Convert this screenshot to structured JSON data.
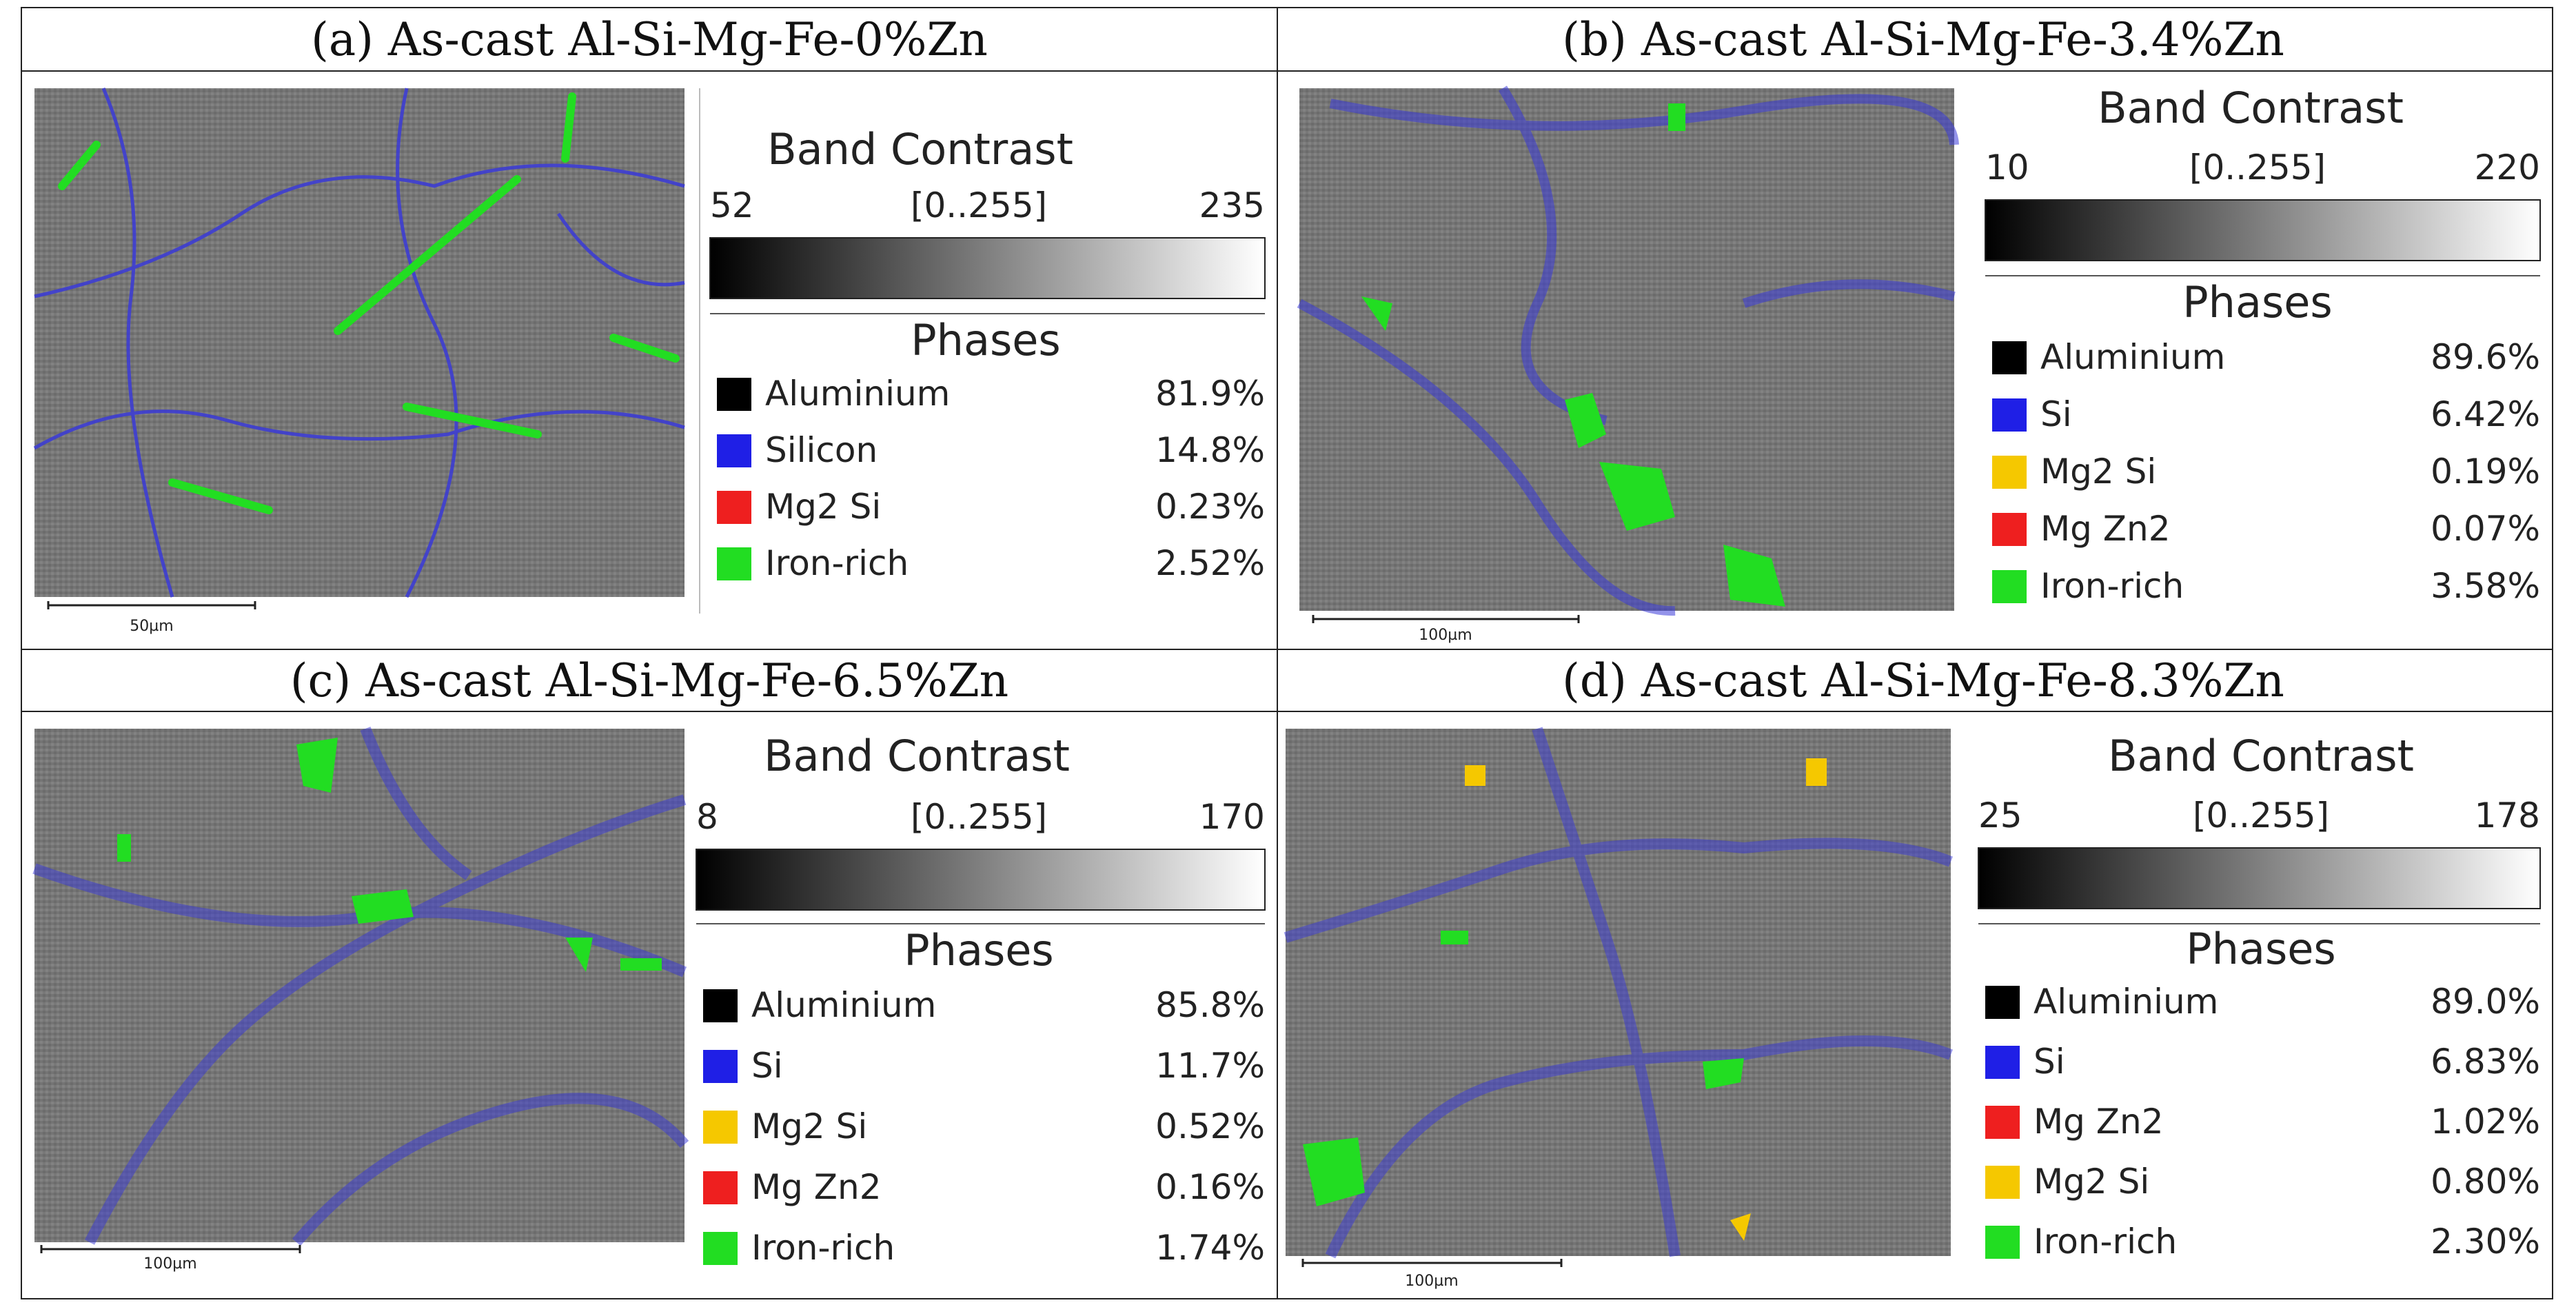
{
  "panels": [
    {
      "title": "(a) As-cast Al-Si-Mg-Fe-0%Zn",
      "scale_bar": "50µm",
      "band_contrast": {
        "heading": "Band Contrast",
        "min": "52",
        "range": "[0..255]",
        "max": "235"
      },
      "phases_heading": "Phases",
      "phases": [
        {
          "name": "Aluminium",
          "percent": "81.9%",
          "color": "#000000"
        },
        {
          "name": "Silicon",
          "percent": "14.8%",
          "color": "#1f1fe6"
        },
        {
          "name": "Mg2 Si",
          "percent": "0.23%",
          "color": "#ee1f1f"
        },
        {
          "name": "Iron-rich",
          "percent": "2.52%",
          "color": "#22dd22"
        }
      ]
    },
    {
      "title": "(b) As-cast Al-Si-Mg-Fe-3.4%Zn",
      "scale_bar": "100µm",
      "band_contrast": {
        "heading": "Band Contrast",
        "min": "10",
        "range": "[0..255]",
        "max": "220"
      },
      "phases_heading": "Phases",
      "phases": [
        {
          "name": "Aluminium",
          "percent": "89.6%",
          "color": "#000000"
        },
        {
          "name": "Si",
          "percent": "6.42%",
          "color": "#1f1fe6"
        },
        {
          "name": "Mg2 Si",
          "percent": "0.19%",
          "color": "#f5c800"
        },
        {
          "name": "Mg Zn2",
          "percent": "0.07%",
          "color": "#ee1f1f"
        },
        {
          "name": "Iron-rich",
          "percent": "3.58%",
          "color": "#22dd22"
        }
      ]
    },
    {
      "title": "(c) As-cast Al-Si-Mg-Fe-6.5%Zn",
      "scale_bar": "100µm",
      "band_contrast": {
        "heading": "Band Contrast",
        "min": "8",
        "range": "[0..255]",
        "max": "170"
      },
      "phases_heading": "Phases",
      "phases": [
        {
          "name": "Aluminium",
          "percent": "85.8%",
          "color": "#000000"
        },
        {
          "name": "Si",
          "percent": "11.7%",
          "color": "#1f1fe6"
        },
        {
          "name": "Mg2 Si",
          "percent": "0.52%",
          "color": "#f5c800"
        },
        {
          "name": "Mg Zn2",
          "percent": "0.16%",
          "color": "#ee1f1f"
        },
        {
          "name": "Iron-rich",
          "percent": "1.74%",
          "color": "#22dd22"
        }
      ]
    },
    {
      "title": "(d) As-cast Al-Si-Mg-Fe-8.3%Zn",
      "scale_bar": "100µm",
      "band_contrast": {
        "heading": "Band Contrast",
        "min": "25",
        "range": "[0..255]",
        "max": "178"
      },
      "phases_heading": "Phases",
      "phases": [
        {
          "name": "Aluminium",
          "percent": "89.0%",
          "color": "#000000"
        },
        {
          "name": "Si",
          "percent": "6.83%",
          "color": "#1f1fe6"
        },
        {
          "name": "Mg Zn2",
          "percent": "1.02%",
          "color": "#ee1f1f"
        },
        {
          "name": "Mg2 Si",
          "percent": "0.80%",
          "color": "#f5c800"
        },
        {
          "name": "Iron-rich",
          "percent": "2.30%",
          "color": "#22dd22"
        }
      ]
    }
  ]
}
